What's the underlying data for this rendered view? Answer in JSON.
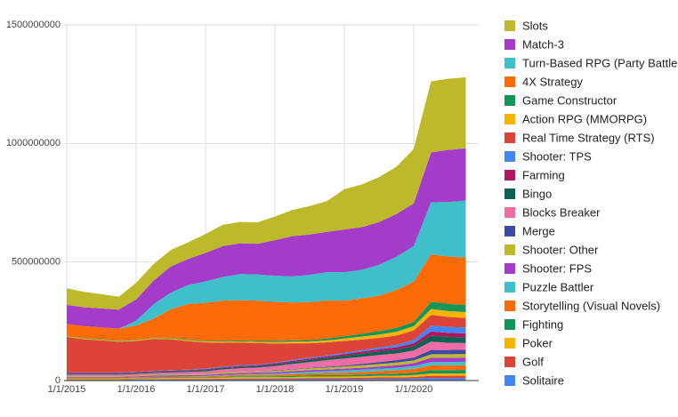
{
  "chart_data": {
    "type": "stacked-area",
    "x": [
      "1/1/2015",
      "4/1/2015",
      "7/1/2015",
      "10/1/2015",
      "1/1/2016",
      "4/1/2016",
      "7/1/2016",
      "10/1/2016",
      "1/1/2017",
      "4/1/2017",
      "7/1/2017",
      "10/1/2017",
      "1/1/2018",
      "4/1/2018",
      "7/1/2018",
      "10/1/2018",
      "1/1/2019",
      "4/1/2019",
      "7/1/2019",
      "10/1/2019",
      "1/1/2020",
      "4/1/2020",
      "7/1/2020",
      "10/1/2020"
    ],
    "xticks": [
      0,
      4,
      8,
      12,
      16,
      20
    ],
    "ylim": [
      0,
      1500000000
    ],
    "yticks": [
      0,
      500000000,
      1000000000,
      1500000000
    ],
    "grid": true,
    "series": [
      {
        "name": "Slots",
        "color": "#bcb92a",
        "values": [
          70000000,
          65000000,
          60000000,
          55000000,
          70000000,
          70000000,
          70000000,
          70000000,
          80000000,
          90000000,
          90000000,
          90000000,
          100000000,
          110000000,
          120000000,
          130000000,
          170000000,
          180000000,
          190000000,
          200000000,
          230000000,
          300000000,
          300000000,
          300000000
        ]
      },
      {
        "name": "Match-3",
        "color": "#a33cc9",
        "values": [
          80000000,
          80000000,
          80000000,
          80000000,
          90000000,
          100000000,
          110000000,
          110000000,
          120000000,
          130000000,
          130000000,
          130000000,
          150000000,
          170000000,
          170000000,
          170000000,
          180000000,
          180000000,
          180000000,
          180000000,
          180000000,
          210000000,
          220000000,
          220000000
        ]
      },
      {
        "name": "Turn-Based RPG (Party Battler)",
        "color": "#3fbfc9",
        "values": [
          0,
          0,
          0,
          0,
          20000000,
          60000000,
          70000000,
          80000000,
          90000000,
          100000000,
          110000000,
          110000000,
          110000000,
          110000000,
          115000000,
          120000000,
          120000000,
          120000000,
          130000000,
          140000000,
          150000000,
          220000000,
          230000000,
          240000000
        ]
      },
      {
        "name": "4X Strategy",
        "color": "#fb6b06",
        "values": [
          50000000,
          50000000,
          50000000,
          50000000,
          60000000,
          80000000,
          120000000,
          150000000,
          160000000,
          170000000,
          170000000,
          170000000,
          165000000,
          160000000,
          160000000,
          160000000,
          150000000,
          150000000,
          150000000,
          160000000,
          170000000,
          200000000,
          200000000,
          200000000
        ]
      },
      {
        "name": "Game Constructor",
        "color": "#13955a",
        "values": [
          2000000,
          2000000,
          2000000,
          2000000,
          2000000,
          2000000,
          3000000,
          3000000,
          3000000,
          3000000,
          4000000,
          4000000,
          5000000,
          5000000,
          6000000,
          8000000,
          10000000,
          12000000,
          14000000,
          16000000,
          18000000,
          30000000,
          30000000,
          30000000
        ]
      },
      {
        "name": "Action RPG (MMORPG)",
        "color": "#f4b400",
        "values": [
          3000000,
          3000000,
          3000000,
          3000000,
          3000000,
          3000000,
          4000000,
          4000000,
          4000000,
          5000000,
          5000000,
          5000000,
          6000000,
          7000000,
          8000000,
          8000000,
          10000000,
          12000000,
          14000000,
          16000000,
          18000000,
          25000000,
          25000000,
          25000000
        ]
      },
      {
        "name": "Real Time Strategy (RTS)",
        "color": "#db4437",
        "values": [
          150000000,
          140000000,
          135000000,
          130000000,
          130000000,
          135000000,
          130000000,
          120000000,
          110000000,
          100000000,
          95000000,
          90000000,
          80000000,
          70000000,
          60000000,
          55000000,
          50000000,
          45000000,
          40000000,
          40000000,
          40000000,
          45000000,
          42000000,
          40000000
        ]
      },
      {
        "name": "Shooter: TPS",
        "color": "#4285f4",
        "values": [
          2000000,
          2000000,
          2000000,
          2000000,
          2000000,
          2000000,
          2000000,
          2000000,
          3000000,
          3000000,
          3000000,
          3000000,
          3000000,
          4000000,
          4000000,
          4000000,
          5000000,
          6000000,
          8000000,
          10000000,
          14000000,
          25000000,
          25000000,
          25000000
        ]
      },
      {
        "name": "Farming",
        "color": "#b0155e",
        "values": [
          3000000,
          3000000,
          3000000,
          3000000,
          3000000,
          3000000,
          3000000,
          3000000,
          4000000,
          4000000,
          4000000,
          4000000,
          5000000,
          5000000,
          6000000,
          6000000,
          7000000,
          8000000,
          9000000,
          10000000,
          12000000,
          18000000,
          17000000,
          17000000
        ]
      },
      {
        "name": "Bingo",
        "color": "#0b6152",
        "values": [
          4000000,
          4000000,
          4000000,
          4000000,
          4000000,
          4000000,
          5000000,
          5000000,
          5000000,
          5000000,
          6000000,
          6000000,
          7000000,
          8000000,
          9000000,
          10000000,
          12000000,
          14000000,
          15000000,
          16000000,
          18000000,
          25000000,
          25000000,
          24000000
        ]
      },
      {
        "name": "Blocks Breaker",
        "color": "#f06ca5",
        "values": [
          5000000,
          5000000,
          5000000,
          5000000,
          6000000,
          6000000,
          7000000,
          8000000,
          10000000,
          12000000,
          14000000,
          15000000,
          18000000,
          22000000,
          25000000,
          28000000,
          30000000,
          30000000,
          30000000,
          28000000,
          30000000,
          35000000,
          30000000,
          28000000
        ]
      },
      {
        "name": "Merge",
        "color": "#3b4aa2",
        "values": [
          1000000,
          1000000,
          1000000,
          1000000,
          1000000,
          1000000,
          1000000,
          1000000,
          1000000,
          1000000,
          1000000,
          1000000,
          2000000,
          2000000,
          2000000,
          3000000,
          4000000,
          6000000,
          8000000,
          10000000,
          12000000,
          18000000,
          18000000,
          18000000
        ]
      },
      {
        "name": "Shooter: Other",
        "color": "#bcb92a",
        "values": [
          3000000,
          3000000,
          3000000,
          3000000,
          3000000,
          4000000,
          4000000,
          4000000,
          4000000,
          5000000,
          5000000,
          5000000,
          6000000,
          6000000,
          7000000,
          8000000,
          9000000,
          10000000,
          11000000,
          12000000,
          12000000,
          15000000,
          15000000,
          15000000
        ]
      },
      {
        "name": "Shooter: FPS",
        "color": "#a33cc9",
        "values": [
          4000000,
          4000000,
          4000000,
          4000000,
          4000000,
          5000000,
          5000000,
          5000000,
          5000000,
          6000000,
          6000000,
          6000000,
          6000000,
          7000000,
          7000000,
          7000000,
          8000000,
          8000000,
          9000000,
          10000000,
          12000000,
          18000000,
          18000000,
          18000000
        ]
      },
      {
        "name": "Puzzle Battler",
        "color": "#3fbfc9",
        "values": [
          0,
          0,
          0,
          0,
          0,
          0,
          0,
          0,
          1000000,
          2000000,
          3000000,
          4000000,
          5000000,
          6000000,
          7000000,
          8000000,
          9000000,
          10000000,
          10000000,
          11000000,
          12000000,
          14000000,
          14000000,
          14000000
        ]
      },
      {
        "name": "Storytelling (Visual Novels)",
        "color": "#fb6b06",
        "values": [
          2000000,
          2000000,
          2000000,
          2000000,
          3000000,
          3000000,
          3000000,
          4000000,
          4000000,
          5000000,
          5000000,
          6000000,
          6000000,
          7000000,
          8000000,
          9000000,
          10000000,
          11000000,
          12000000,
          14000000,
          16000000,
          20000000,
          20000000,
          20000000
        ]
      },
      {
        "name": "Fighting",
        "color": "#13955a",
        "values": [
          2000000,
          2000000,
          2000000,
          2000000,
          2000000,
          3000000,
          3000000,
          3000000,
          3000000,
          3000000,
          4000000,
          4000000,
          4000000,
          5000000,
          5000000,
          6000000,
          6000000,
          7000000,
          8000000,
          9000000,
          10000000,
          14000000,
          14000000,
          15000000
        ]
      },
      {
        "name": "Poker",
        "color": "#f4b400",
        "values": [
          3000000,
          3000000,
          3000000,
          3000000,
          3000000,
          4000000,
          4000000,
          4000000,
          4000000,
          5000000,
          5000000,
          5000000,
          5000000,
          5000000,
          6000000,
          6000000,
          6000000,
          6000000,
          7000000,
          7000000,
          8000000,
          10000000,
          10000000,
          10000000
        ]
      },
      {
        "name": "Golf",
        "color": "#db4437",
        "values": [
          2000000,
          2000000,
          2000000,
          2000000,
          2000000,
          2000000,
          3000000,
          3000000,
          3000000,
          3000000,
          4000000,
          4000000,
          4000000,
          5000000,
          5000000,
          5000000,
          5000000,
          6000000,
          6000000,
          6000000,
          7000000,
          10000000,
          10000000,
          10000000
        ]
      },
      {
        "name": "Solitaire",
        "color": "#4285f4",
        "values": [
          3000000,
          3000000,
          3000000,
          3000000,
          4000000,
          4000000,
          4000000,
          4000000,
          4000000,
          5000000,
          5000000,
          5000000,
          5000000,
          5000000,
          6000000,
          6000000,
          6000000,
          6000000,
          7000000,
          7000000,
          8000000,
          10000000,
          10000000,
          10000000
        ]
      }
    ]
  }
}
